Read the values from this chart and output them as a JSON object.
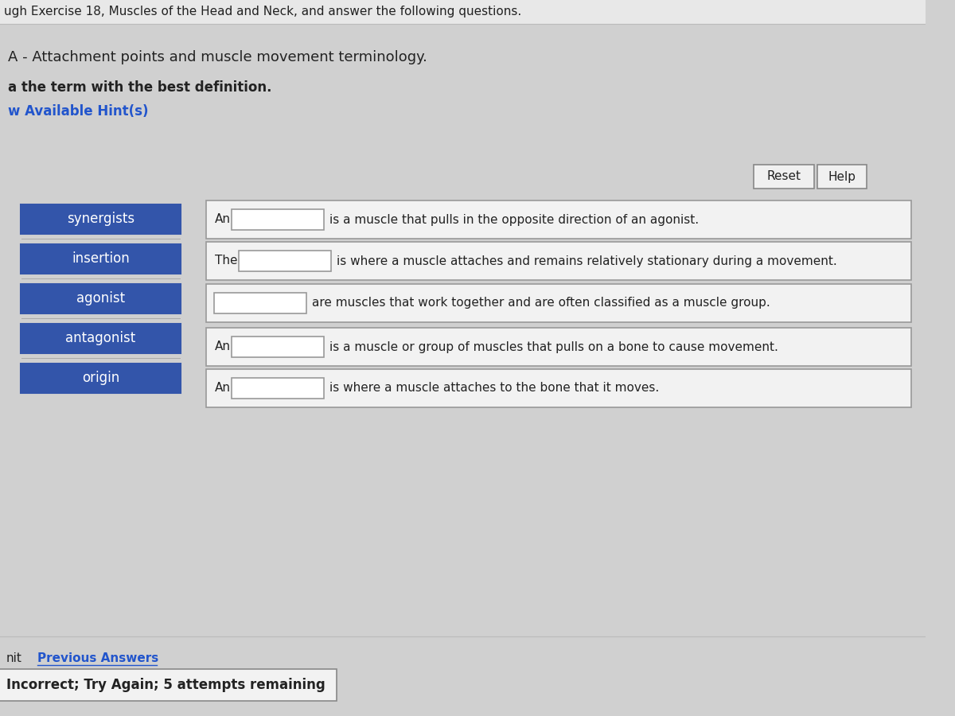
{
  "background_color": "#d0d0d0",
  "header_bg": "#e0e0e0",
  "header_text": "ugh Exercise 18, Muscles of the Head and Neck, and answer the following questions.",
  "section_title": "A - Attachment points and muscle movement terminology.",
  "instruction": "a the term with the best definition.",
  "hint_text": "w Available Hint(s)",
  "hint_color": "#2255cc",
  "terms": [
    "synergists",
    "insertion",
    "agonist",
    "antagonist",
    "origin"
  ],
  "term_box_color": "#3355aa",
  "term_text_color": "#ffffff",
  "term_box_border": "#3355aa",
  "answer_boxes": [
    {
      "prefix": "An",
      "text": "is a muscle that pulls in the opposite direction of an agonist."
    },
    {
      "prefix": "The",
      "text": "is where a muscle attaches and remains relatively stationary during a movement."
    },
    {
      "prefix": "",
      "text": "are muscles that work together and are often classified as a muscle group."
    },
    {
      "prefix": "An",
      "text": "is a muscle or group of muscles that pulls on a bone to cause movement."
    },
    {
      "prefix": "An",
      "text": "is where a muscle attaches to the bone that it moves."
    }
  ],
  "reset_button": "Reset",
  "help_button": "Help",
  "bottom_left_text": "nit",
  "previous_answers_text": "Previous Answers",
  "previous_answers_color": "#2255cc",
  "incorrect_text": "Incorrect; Try Again; 5 attempts remaining",
  "incorrect_box_border": "#888888"
}
